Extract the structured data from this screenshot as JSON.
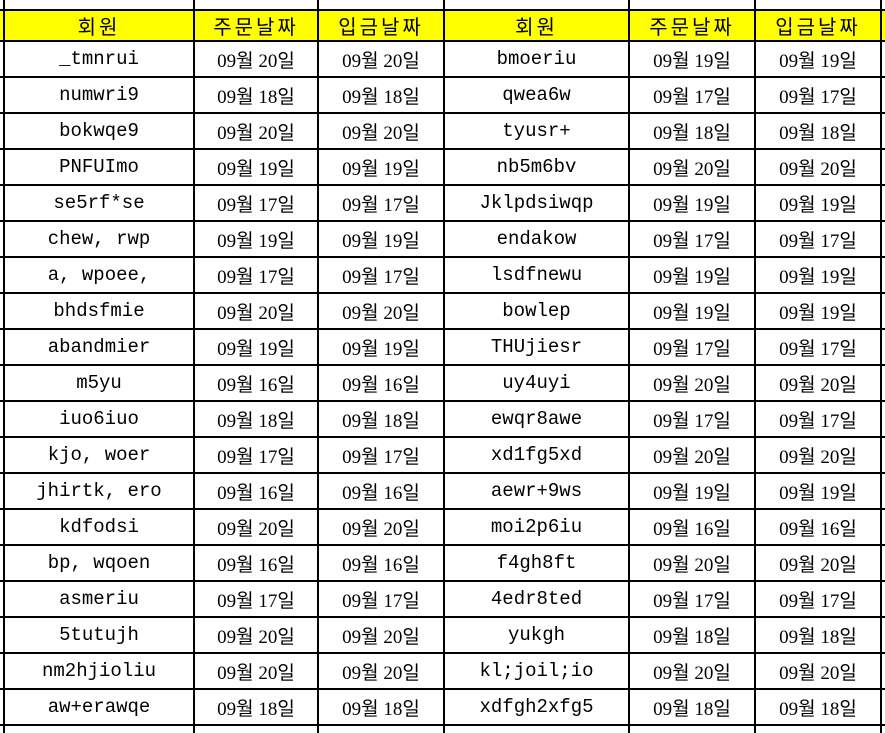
{
  "colors": {
    "header_bg": "#ffff00",
    "grid_line": "#000000",
    "cell_bg": "#ffffff",
    "text": "#000000"
  },
  "headers": {
    "left": {
      "member": "회원",
      "order": "주문날짜",
      "deposit": "입금날짜"
    },
    "right": {
      "member": "회원",
      "order": "주문날짜",
      "deposit": "입금날짜"
    }
  },
  "rows": [
    {
      "left": {
        "member": "_tmnrui",
        "order": "09월 20일",
        "deposit": "09월 20일"
      },
      "right": {
        "member": "bmoeriu",
        "order": "09월 19일",
        "deposit": "09월 19일"
      }
    },
    {
      "left": {
        "member": "numwri9",
        "order": "09월 18일",
        "deposit": "09월 18일"
      },
      "right": {
        "member": "qwea6w",
        "order": "09월 17일",
        "deposit": "09월 17일"
      }
    },
    {
      "left": {
        "member": "bokwqe9",
        "order": "09월 20일",
        "deposit": "09월 20일"
      },
      "right": {
        "member": "tyusr+",
        "order": "09월 18일",
        "deposit": "09월 18일"
      }
    },
    {
      "left": {
        "member": "PNFUImo",
        "order": "09월 19일",
        "deposit": "09월 19일"
      },
      "right": {
        "member": "nb5m6bv",
        "order": "09월 20일",
        "deposit": "09월 20일"
      }
    },
    {
      "left": {
        "member": "se5rf*se",
        "order": "09월 17일",
        "deposit": "09월 17일"
      },
      "right": {
        "member": "Jklpdsiwqp",
        "order": "09월 19일",
        "deposit": "09월 19일"
      }
    },
    {
      "left": {
        "member": "chew, rwp",
        "order": "09월 19일",
        "deposit": "09월 19일"
      },
      "right": {
        "member": "endakow",
        "order": "09월 17일",
        "deposit": "09월 17일"
      }
    },
    {
      "left": {
        "member": "a, wpoee,",
        "order": "09월 17일",
        "deposit": "09월 17일"
      },
      "right": {
        "member": "lsdfnewu",
        "order": "09월 19일",
        "deposit": "09월 19일"
      }
    },
    {
      "left": {
        "member": "bhdsfmie",
        "order": "09월 20일",
        "deposit": "09월 20일"
      },
      "right": {
        "member": "bowlep",
        "order": "09월 19일",
        "deposit": "09월 19일"
      }
    },
    {
      "left": {
        "member": "abandmier",
        "order": "09월 19일",
        "deposit": "09월 19일"
      },
      "right": {
        "member": "THUjiesr",
        "order": "09월 17일",
        "deposit": "09월 17일"
      }
    },
    {
      "left": {
        "member": "m5yu",
        "order": "09월 16일",
        "deposit": "09월 16일"
      },
      "right": {
        "member": "uy4uyi",
        "order": "09월 20일",
        "deposit": "09월 20일"
      }
    },
    {
      "left": {
        "member": "iuo6iuo",
        "order": "09월 18일",
        "deposit": "09월 18일"
      },
      "right": {
        "member": "ewqr8awe",
        "order": "09월 17일",
        "deposit": "09월 17일"
      }
    },
    {
      "left": {
        "member": "kjo, woer",
        "order": "09월 17일",
        "deposit": "09월 17일"
      },
      "right": {
        "member": "xd1fg5xd",
        "order": "09월 20일",
        "deposit": "09월 20일"
      }
    },
    {
      "left": {
        "member": "jhirtk, ero",
        "order": "09월 16일",
        "deposit": "09월 16일"
      },
      "right": {
        "member": "aewr+9ws",
        "order": "09월 19일",
        "deposit": "09월 19일"
      }
    },
    {
      "left": {
        "member": "kdfodsi",
        "order": "09월 20일",
        "deposit": "09월 20일"
      },
      "right": {
        "member": "moi2p6iu",
        "order": "09월 16일",
        "deposit": "09월 16일"
      }
    },
    {
      "left": {
        "member": "bp, wqoen",
        "order": "09월 16일",
        "deposit": "09월 16일"
      },
      "right": {
        "member": "f4gh8ft",
        "order": "09월 20일",
        "deposit": "09월 20일"
      }
    },
    {
      "left": {
        "member": "asmeriu",
        "order": "09월 17일",
        "deposit": "09월 17일"
      },
      "right": {
        "member": "4edr8ted",
        "order": "09월 17일",
        "deposit": "09월 17일"
      }
    },
    {
      "left": {
        "member": "5tutujh",
        "order": "09월 20일",
        "deposit": "09월 20일"
      },
      "right": {
        "member": "yukgh",
        "order": "09월 18일",
        "deposit": "09월 18일"
      }
    },
    {
      "left": {
        "member": "nm2hjioliu",
        "order": "09월 20일",
        "deposit": "09월 20일"
      },
      "right": {
        "member": "kl;joil;io",
        "order": "09월 20일",
        "deposit": "09월 20일"
      }
    },
    {
      "left": {
        "member": "aw+erawqe",
        "order": "09월 18일",
        "deposit": "09월 18일"
      },
      "right": {
        "member": "xdfgh2xfg5",
        "order": "09월 18일",
        "deposit": "09월 18일"
      }
    }
  ]
}
